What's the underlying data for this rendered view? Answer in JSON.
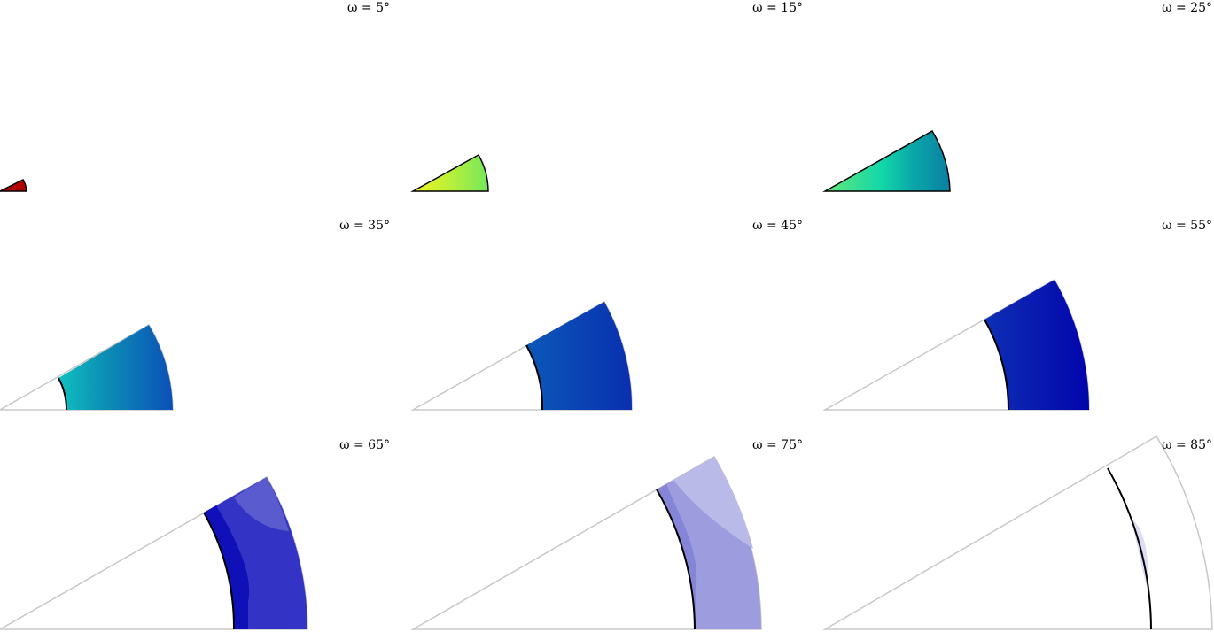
{
  "panels": [
    {
      "omega_label": "ω = 5°",
      "fill": "#b00000"
    },
    {
      "omega_label": "ω = 15°",
      "fill": "#9cef4a"
    },
    {
      "omega_label": "ω = 25°",
      "fill": "#0fa3a3"
    },
    {
      "omega_label": "ω = 35°",
      "fill": "#1a6fc4"
    },
    {
      "omega_label": "ω = 45°",
      "fill": "#0b3fb0"
    },
    {
      "omega_label": "ω = 55°",
      "fill": "#0a1fb0"
    },
    {
      "omega_label": "ω = 65°",
      "fill": "#3334c6"
    },
    {
      "omega_label": "ω = 75°",
      "fill": "#9c9cde"
    },
    {
      "omega_label": "ω = 85°",
      "fill": "#d8d8f2"
    }
  ]
}
